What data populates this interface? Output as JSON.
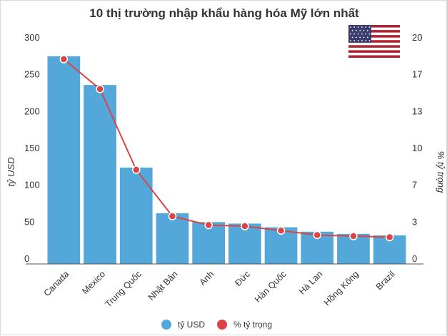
{
  "chart_data": {
    "type": "bar",
    "title": "10 thị trường nhập khẩu hàng hóa Mỹ lớn nhất",
    "categories": [
      "Canada",
      "Mexico",
      "Trung Quốc",
      "Nhật Bản",
      "Anh",
      "Đức",
      "Hàn Quốc",
      "Hà Lan",
      "Hồng Kông",
      "Brazil"
    ],
    "series": [
      {
        "name": "tỷ USD",
        "type": "bar",
        "axis": "left",
        "color": "#53a8d9",
        "values": [
          274,
          235,
          123,
          61,
          49,
          47,
          42,
          36,
          33,
          31
        ]
      },
      {
        "name": "% tỷ trọng",
        "type": "line",
        "axis": "right",
        "color": "#d94545",
        "values": [
          18,
          15.3,
          8,
          3.8,
          3.0,
          2.9,
          2.5,
          2.1,
          2.0,
          1.9
        ]
      }
    ],
    "ylabel": "tỷ USD",
    "y2label": "% tỷ trọng",
    "ylim": [
      0,
      300
    ],
    "y2lim": [
      0,
      20
    ],
    "yticks": [
      "0",
      "50",
      "100",
      "150",
      "200",
      "250",
      "300"
    ],
    "y2ticks": [
      "0",
      "3",
      "7",
      "10",
      "13",
      "17",
      "20"
    ],
    "grid": false,
    "legend": "bottom-center"
  },
  "flag_icon": "us-flag-icon"
}
